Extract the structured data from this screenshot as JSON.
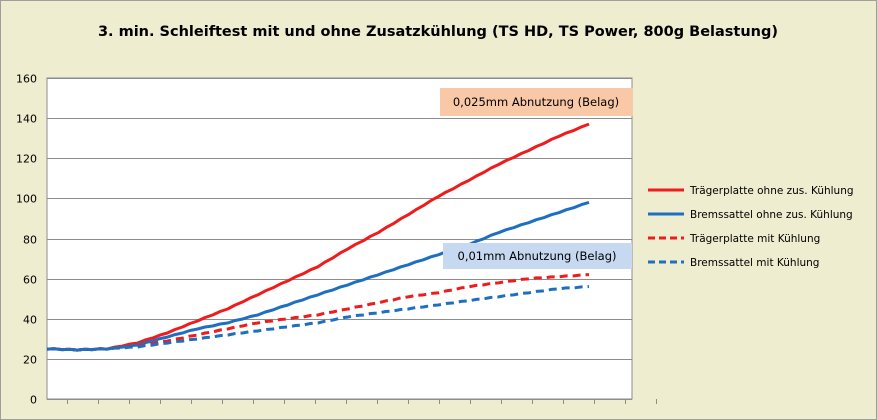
{
  "colors": {
    "outer_bg": "#EEEDD0",
    "plot_bg": "#FFFFFF",
    "grid": "#8C8C8C",
    "red": "#EE1C1C",
    "blue": "#1E6FC1",
    "annotation_orange_bg": "#F9C9A7",
    "annotation_blue_bg": "#C6D9F1"
  },
  "chart_data": {
    "type": "line",
    "title": "3. min. Schleiftest mit und ohne Zusatzkühlung  (TS HD, TS Power, 800g Belastung)",
    "xlabel": "",
    "ylabel": "",
    "ylim": [
      0,
      160
    ],
    "yticks": [
      "0",
      "20",
      "40",
      "60",
      "80",
      "100",
      "120",
      "140",
      "160"
    ],
    "x_domain": [
      0,
      180
    ],
    "grid": true,
    "legend_position": "right",
    "series": [
      {
        "name": "Trägerplatte ohne zus. Kühlung",
        "color": "#EE1C1C",
        "style": "solid",
        "x": [
          0,
          10,
          20,
          30,
          40,
          50,
          60,
          70,
          80,
          90,
          100,
          110,
          120,
          130,
          140,
          150,
          160,
          170,
          180
        ],
        "y": [
          25,
          24.5,
          25,
          28,
          33,
          39,
          45,
          52,
          59,
          66,
          75,
          83,
          92,
          101,
          109,
          117,
          124,
          131,
          137
        ]
      },
      {
        "name": "Bremssattel ohne zus. Kühlung",
        "color": "#1E6FC1",
        "style": "solid",
        "x": [
          0,
          10,
          20,
          30,
          40,
          50,
          60,
          70,
          80,
          90,
          100,
          110,
          120,
          130,
          140,
          150,
          160,
          170,
          180
        ],
        "y": [
          25,
          24.5,
          25,
          27,
          31,
          35,
          38,
          42,
          47,
          52,
          57,
          62,
          67,
          72,
          77,
          83,
          88,
          93,
          98
        ]
      },
      {
        "name": "Trägerplatte mit Kühlung",
        "color": "#EE1C1C",
        "style": "dashed",
        "x": [
          0,
          10,
          20,
          30,
          40,
          50,
          60,
          70,
          80,
          90,
          100,
          110,
          120,
          130,
          140,
          150,
          160,
          170,
          180
        ],
        "y": [
          25,
          24.5,
          25,
          26.5,
          29,
          32,
          35,
          38,
          40,
          42,
          45,
          48,
          51,
          53,
          56,
          58,
          60,
          61,
          62
        ]
      },
      {
        "name": "Bremssattel mit Kühlung",
        "color": "#1E6FC1",
        "style": "dashed",
        "x": [
          0,
          10,
          20,
          30,
          40,
          50,
          60,
          70,
          80,
          90,
          100,
          110,
          120,
          130,
          140,
          150,
          160,
          170,
          180
        ],
        "y": [
          25,
          24.5,
          25,
          26,
          28,
          30,
          32,
          34,
          36,
          38,
          41,
          43,
          45,
          47,
          49,
          51,
          53,
          55,
          56
        ]
      }
    ],
    "annotations": [
      {
        "text": "0,025mm Abnutzung (Belag)",
        "style": "orange"
      },
      {
        "text": "0,01mm Abnutzung (Belag)",
        "style": "blue"
      }
    ]
  }
}
